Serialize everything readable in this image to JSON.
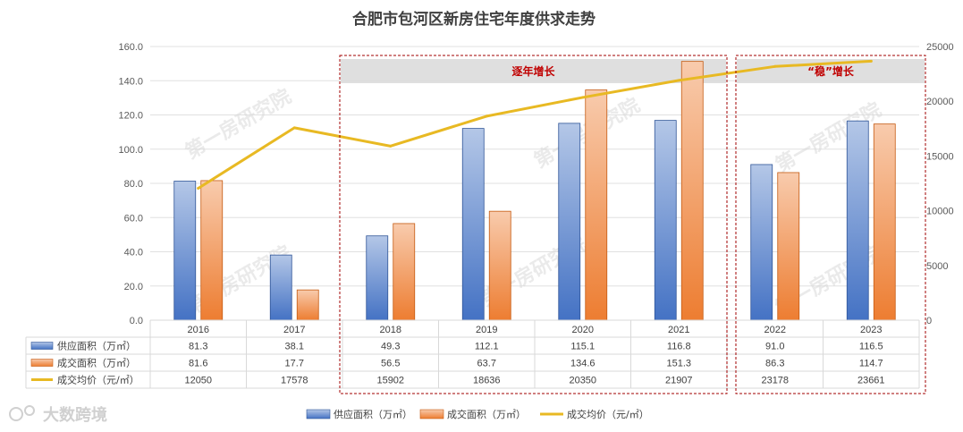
{
  "chart_data": {
    "type": "bar",
    "title": "合肥市包河区新房住宅年度供求走势",
    "categories": [
      "2016",
      "2017",
      "2018",
      "2019",
      "2020",
      "2021",
      "2022",
      "2023"
    ],
    "series": [
      {
        "name": "供应面积（万㎡）",
        "type": "bar",
        "axis": "left",
        "color": "#4472c4",
        "values": [
          81.3,
          38.1,
          49.3,
          112.1,
          115.1,
          116.8,
          91.0,
          116.5
        ]
      },
      {
        "name": "成交面积（万㎡）",
        "type": "bar",
        "axis": "left",
        "color": "#ed7d31",
        "values": [
          81.6,
          17.7,
          56.5,
          63.7,
          134.6,
          151.3,
          86.3,
          114.7
        ]
      },
      {
        "name": "成交均价（元/㎡）",
        "type": "line",
        "axis": "right",
        "color": "#e8b923",
        "values": [
          12050,
          17578,
          15902,
          18636,
          20350,
          21907,
          23178,
          23661
        ]
      }
    ],
    "y_left": {
      "range": [
        0,
        160
      ],
      "ticks": [
        "0.0",
        "20.0",
        "40.0",
        "60.0",
        "80.0",
        "100.0",
        "120.0",
        "140.0",
        "160.0"
      ]
    },
    "y_right": {
      "range": [
        0,
        25000
      ],
      "ticks": [
        "0",
        "5000",
        "10000",
        "15000",
        "20000",
        "25000"
      ]
    },
    "table_values": [
      [
        "81.3",
        "38.1",
        "49.3",
        "112.1",
        "115.1",
        "116.8",
        "91.0",
        "116.5"
      ],
      [
        "81.6",
        "17.7",
        "56.5",
        "63.7",
        "134.6",
        "151.3",
        "86.3",
        "114.7"
      ],
      [
        "12050",
        "17578",
        "15902",
        "18636",
        "20350",
        "21907",
        "23178",
        "23661"
      ]
    ],
    "regions": [
      {
        "label": "逐年增长",
        "from": "2018",
        "to": "2021"
      },
      {
        "label": "“稳”增长",
        "from": "2022",
        "to": "2023"
      }
    ],
    "legend_position": "bottom",
    "grid": true
  },
  "watermark": "第一房研究院",
  "logo_text": "大数跨境"
}
